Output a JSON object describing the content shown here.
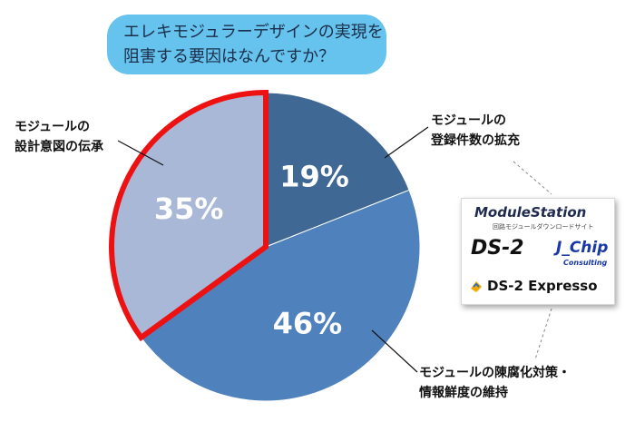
{
  "header": {
    "question_line1": "エレキモジュラーデザインの実現を",
    "question_line2": "阻害する要因はなんですか？"
  },
  "chart_data": {
    "type": "pie",
    "title": "エレキモジュラーデザインの実現を阻害する要因はなんですか？",
    "slices": [
      {
        "label_line1": "モジュールの",
        "label_line2": "登録件数の拡充",
        "value": 19,
        "value_label": "19%",
        "color": "#3f6895"
      },
      {
        "label_line1": "モジュールの陳腐化対策・",
        "label_line2": "情報鮮度の維持",
        "value": 46,
        "value_label": "46%",
        "color": "#4f81bd"
      },
      {
        "label_line1": "モジュールの",
        "label_line2": "設計意図の伝承",
        "value": 35,
        "value_label": "35%",
        "color": "#a9b8d6",
        "highlighted": true,
        "highlight_color": "#ee1111"
      }
    ]
  },
  "logos": {
    "module_station": "ModuleStation",
    "module_station_sub": "回路モジュールダウンロードサイト",
    "ds2": "DS-2",
    "jchip": "J_Chip",
    "jchip_sub": "Consulting",
    "ds2_expresso": "DS-2 Expresso",
    "expresso_icon_color": "#f2a900"
  }
}
